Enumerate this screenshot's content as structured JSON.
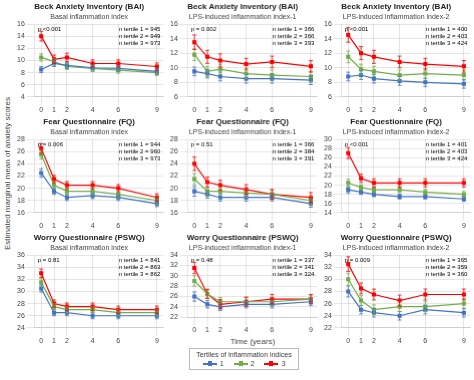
{
  "chart_data": [
    {
      "type": "line",
      "title": "Beck Anxiety Inventory (BAI)",
      "subtitle": "Basal inflammation index",
      "x": [
        0,
        1,
        2,
        4,
        6,
        9
      ],
      "xlim": [
        -0.5,
        9.5
      ],
      "xticks": [
        0,
        1,
        2,
        4,
        6,
        9
      ],
      "ylim": [
        4,
        16
      ],
      "yticks": [
        4,
        6,
        8,
        10,
        12,
        14,
        16
      ],
      "grid": true,
      "annotations": [
        "p <0.001",
        "n tertile 1 = 945",
        "n tertile 2 = 949",
        "n tertile 3 = 973"
      ],
      "series": [
        {
          "name": "1",
          "color": "#4472C4",
          "marker": "square",
          "values": [
            8.5,
            9.5,
            9.2,
            8.8,
            8.7,
            8.2
          ],
          "errors": [
            0.5,
            0.5,
            0.5,
            0.5,
            0.5,
            0.5
          ]
        },
        {
          "name": "2",
          "color": "#70AD47",
          "marker": "square",
          "values": [
            10.5,
            9.8,
            9.0,
            8.7,
            8.4,
            8.0
          ],
          "errors": [
            0.6,
            0.5,
            0.5,
            0.5,
            0.5,
            0.5
          ]
        },
        {
          "name": "3",
          "color": "#FF0000",
          "marker": "square",
          "values": [
            14.0,
            10.2,
            10.5,
            9.5,
            9.5,
            9.0
          ],
          "errors": [
            0.8,
            0.7,
            0.7,
            0.6,
            0.6,
            0.6
          ]
        }
      ]
    },
    {
      "type": "line",
      "title": "Beck Anxiety Inventory (BAI)",
      "subtitle": "LPS-induced inflammation index-1",
      "x": [
        0,
        1,
        2,
        4,
        6,
        9
      ],
      "xlim": [
        -0.5,
        9.5
      ],
      "xticks": [
        0,
        1,
        2,
        4,
        6,
        9
      ],
      "ylim": [
        6,
        16
      ],
      "yticks": [
        6,
        8,
        10,
        12,
        14,
        16
      ],
      "grid": true,
      "annotations": [
        "p = 0.002",
        "n tertile 1 = 366",
        "n tertile 2 = 366",
        "n tertile 3 = 393"
      ],
      "series": [
        {
          "name": "1",
          "color": "#4472C4",
          "marker": "square",
          "values": [
            9.5,
            9.2,
            8.8,
            8.5,
            8.5,
            8.3
          ],
          "errors": [
            0.6,
            0.6,
            0.6,
            0.6,
            0.6,
            0.6
          ]
        },
        {
          "name": "2",
          "color": "#70AD47",
          "marker": "square",
          "values": [
            11.8,
            9.5,
            9.8,
            9.2,
            9.0,
            8.8
          ],
          "errors": [
            0.8,
            0.7,
            0.7,
            0.7,
            0.7,
            0.7
          ]
        },
        {
          "name": "3",
          "color": "#FF0000",
          "marker": "square",
          "values": [
            13.5,
            11.5,
            11.0,
            10.5,
            10.8,
            10.2
          ],
          "errors": [
            1.0,
            0.9,
            0.9,
            0.8,
            0.8,
            0.8
          ]
        }
      ]
    },
    {
      "type": "line",
      "title": "Beck Anxiety Inventory (BAI)",
      "subtitle": "LPS-induced inflammation index-2",
      "x": [
        0,
        1,
        2,
        4,
        6,
        9
      ],
      "xlim": [
        -0.5,
        9.5
      ],
      "xticks": [
        0,
        1,
        2,
        4,
        6,
        9
      ],
      "ylim": [
        6,
        16
      ],
      "yticks": [
        6,
        8,
        10,
        12,
        14,
        16
      ],
      "grid": true,
      "annotations": [
        "p <0.001",
        "n tertile 1 = 400",
        "n tertile 2 = 403",
        "n tertile 3 = 424"
      ],
      "series": [
        {
          "name": "1",
          "color": "#4472C4",
          "marker": "square",
          "values": [
            8.8,
            9.0,
            8.5,
            8.2,
            8.0,
            7.8
          ],
          "errors": [
            0.6,
            0.6,
            0.6,
            0.6,
            0.6,
            0.6
          ]
        },
        {
          "name": "2",
          "color": "#70AD47",
          "marker": "square",
          "values": [
            11.5,
            9.8,
            9.5,
            9.0,
            9.2,
            9.0
          ],
          "errors": [
            0.8,
            0.7,
            0.7,
            0.7,
            0.7,
            0.7
          ]
        },
        {
          "name": "3",
          "color": "#FF0000",
          "marker": "square",
          "values": [
            14.5,
            12.0,
            11.5,
            10.8,
            10.5,
            10.2
          ],
          "errors": [
            1.0,
            0.9,
            0.9,
            0.8,
            0.8,
            0.8
          ]
        }
      ]
    },
    {
      "type": "line",
      "title": "Fear Questionnaire (FQ)",
      "subtitle": "Basal inflammation index",
      "ylabel": "Estimated marginal mean of anxiety scores",
      "x": [
        0,
        1,
        2,
        4,
        6,
        9
      ],
      "xlim": [
        -0.5,
        9.5
      ],
      "xticks": [
        0,
        1,
        2,
        4,
        6,
        9
      ],
      "ylim": [
        16,
        28
      ],
      "yticks": [
        16,
        18,
        20,
        22,
        24,
        26,
        28
      ],
      "grid": true,
      "annotations": [
        "p = 0.006",
        "n tertile 1 = 944",
        "n tertile 2 = 960",
        "n tertile 3 = 973"
      ],
      "series": [
        {
          "name": "1",
          "color": "#4472C4",
          "marker": "square",
          "values": [
            22.5,
            19.5,
            18.5,
            18.8,
            18.5,
            17.5
          ],
          "errors": [
            0.7,
            0.5,
            0.5,
            0.5,
            0.5,
            0.5
          ]
        },
        {
          "name": "2",
          "color": "#70AD47",
          "marker": "square",
          "values": [
            25.5,
            20.5,
            19.5,
            19.5,
            19.0,
            18.0
          ],
          "errors": [
            0.7,
            0.6,
            0.6,
            0.6,
            0.6,
            0.6
          ]
        },
        {
          "name": "3",
          "color": "#FF0000",
          "marker": "square",
          "values": [
            26.5,
            21.5,
            20.5,
            20.5,
            20.0,
            18.5
          ],
          "errors": [
            0.8,
            0.6,
            0.6,
            0.6,
            0.6,
            0.6
          ]
        }
      ]
    },
    {
      "type": "line",
      "title": "Fear Questionnaire (FQ)",
      "subtitle": "LPS-induced inflammation index-1",
      "x": [
        0,
        1,
        2,
        4,
        6,
        9
      ],
      "xlim": [
        -0.5,
        9.5
      ],
      "xticks": [
        0,
        1,
        2,
        4,
        6,
        9
      ],
      "ylim": [
        16,
        28
      ],
      "yticks": [
        16,
        18,
        20,
        22,
        24,
        26,
        28
      ],
      "grid": true,
      "annotations": [
        "p = 0.51",
        "n tertile 1 = 366",
        "n tertile 2 = 384",
        "n tertile 3 = 391"
      ],
      "series": [
        {
          "name": "1",
          "color": "#4472C4",
          "marker": "square",
          "values": [
            19.5,
            19.0,
            18.5,
            18.5,
            18.5,
            17.5
          ],
          "errors": [
            0.8,
            0.6,
            0.6,
            0.6,
            0.6,
            0.6
          ]
        },
        {
          "name": "2",
          "color": "#70AD47",
          "marker": "square",
          "values": [
            21.5,
            19.5,
            19.5,
            19.2,
            19.0,
            18.0
          ],
          "errors": [
            0.9,
            0.7,
            0.7,
            0.7,
            0.7,
            0.7
          ]
        },
        {
          "name": "3",
          "color": "#FF0000",
          "marker": "square",
          "values": [
            24.0,
            21.0,
            20.5,
            19.8,
            19.0,
            18.5
          ],
          "errors": [
            1.1,
            0.8,
            0.8,
            0.8,
            0.8,
            0.8
          ]
        }
      ]
    },
    {
      "type": "line",
      "title": "Fear Questionnaire (FQ)",
      "subtitle": "LPS-induced inflammation index-2",
      "x": [
        0,
        1,
        2,
        4,
        6,
        9
      ],
      "xlim": [
        -0.5,
        9.5
      ],
      "xticks": [
        0,
        1,
        2,
        4,
        6,
        9
      ],
      "ylim": [
        14,
        30
      ],
      "yticks": [
        14,
        16,
        18,
        20,
        22,
        24,
        26,
        28,
        30
      ],
      "grid": true,
      "annotations": [
        "p <0.001",
        "n tertile 1 = 401",
        "n tertile 2 = 403",
        "n tertile 3 = 424"
      ],
      "series": [
        {
          "name": "1",
          "color": "#4472C4",
          "marker": "square",
          "values": [
            19.0,
            18.5,
            18.0,
            17.5,
            17.5,
            17.0
          ],
          "errors": [
            0.7,
            0.5,
            0.5,
            0.5,
            0.5,
            0.5
          ]
        },
        {
          "name": "2",
          "color": "#70AD47",
          "marker": "square",
          "values": [
            20.5,
            19.5,
            19.0,
            19.0,
            18.5,
            18.0
          ],
          "errors": [
            0.8,
            0.6,
            0.6,
            0.6,
            0.6,
            0.6
          ]
        },
        {
          "name": "3",
          "color": "#FF0000",
          "marker": "square",
          "values": [
            27.0,
            21.5,
            20.5,
            20.5,
            20.5,
            20.5
          ],
          "errors": [
            1.2,
            0.9,
            0.9,
            0.9,
            0.9,
            0.9
          ]
        }
      ]
    },
    {
      "type": "line",
      "title": "Worry Questionnaire (PSWQ)",
      "subtitle": "Basal inflammation index",
      "x": [
        0,
        1,
        2,
        4,
        6,
        9
      ],
      "xlim": [
        -0.5,
        9.5
      ],
      "xticks": [
        0,
        1,
        2,
        4,
        6,
        9
      ],
      "ylim": [
        24,
        36
      ],
      "yticks": [
        24,
        26,
        28,
        30,
        32,
        34,
        36
      ],
      "grid": true,
      "annotations": [
        "p = 0.81",
        "n tertile 1 = 841",
        "n tertile 2 = 863",
        "n tertile 3 = 862"
      ],
      "series": [
        {
          "name": "1",
          "color": "#4472C4",
          "marker": "square",
          "values": [
            30.5,
            26.5,
            26.5,
            26.0,
            26.0,
            26.0
          ],
          "errors": [
            0.6,
            0.5,
            0.5,
            0.5,
            0.5,
            0.5
          ]
        },
        {
          "name": "2",
          "color": "#70AD47",
          "marker": "square",
          "values": [
            31.5,
            27.5,
            27.0,
            27.0,
            26.5,
            26.5
          ],
          "errors": [
            0.6,
            0.5,
            0.5,
            0.5,
            0.5,
            0.5
          ]
        },
        {
          "name": "3",
          "color": "#FF0000",
          "marker": "square",
          "values": [
            33.0,
            28.0,
            27.5,
            27.5,
            27.0,
            27.0
          ],
          "errors": [
            0.7,
            0.6,
            0.6,
            0.6,
            0.6,
            0.6
          ]
        }
      ]
    },
    {
      "type": "line",
      "title": "Worry Questionnaire (PSWQ)",
      "subtitle": "LPS-induced inflammation index-1",
      "xlabel": "Time (years)",
      "legend": "bottom",
      "legend_title": "Tertiles of inflammation indices",
      "x": [
        0,
        1,
        2,
        4,
        6,
        9
      ],
      "xlim": [
        -0.5,
        9.5
      ],
      "xticks": [
        0,
        1,
        2,
        4,
        6,
        9
      ],
      "ylim": [
        22,
        34
      ],
      "yticks": [
        22,
        24,
        26,
        28,
        30,
        32,
        34
      ],
      "grid": true,
      "annotations": [
        "p = 0.48",
        "n tertile 1 = 337",
        "n tertile 2 = 341",
        "n tertile 3 = 324"
      ],
      "series": [
        {
          "name": "1",
          "color": "#4472C4",
          "marker": "square",
          "values": [
            26.0,
            24.5,
            24.0,
            24.5,
            24.5,
            25.0
          ],
          "errors": [
            0.9,
            0.7,
            0.7,
            0.7,
            0.7,
            0.7
          ]
        },
        {
          "name": "2",
          "color": "#70AD47",
          "marker": "square",
          "values": [
            29.0,
            26.5,
            25.0,
            25.0,
            25.0,
            25.5
          ],
          "errors": [
            1.0,
            0.8,
            0.8,
            0.8,
            0.8,
            0.8
          ]
        },
        {
          "name": "3",
          "color": "#FF0000",
          "marker": "square",
          "values": [
            31.5,
            26.5,
            24.5,
            25.0,
            25.5,
            25.5
          ],
          "errors": [
            1.1,
            0.9,
            0.9,
            0.9,
            0.9,
            0.9
          ]
        }
      ]
    },
    {
      "type": "line",
      "title": "Worry Questionnaire (PSWQ)",
      "subtitle": "LPS-induced inflammation index-2",
      "x": [
        0,
        1,
        2,
        4,
        6,
        9
      ],
      "xlim": [
        -0.5,
        9.5
      ],
      "xticks": [
        0,
        1,
        2,
        4,
        6,
        9
      ],
      "ylim": [
        22,
        34
      ],
      "yticks": [
        22,
        24,
        26,
        28,
        30,
        32,
        34
      ],
      "grid": true,
      "annotations": [
        "p = 0.009",
        "n tertile 1 = 365",
        "n tertile 2 = 359",
        "n tertile 3 = 360"
      ],
      "series": [
        {
          "name": "1",
          "color": "#4472C4",
          "marker": "square",
          "values": [
            28.0,
            25.0,
            24.5,
            24.0,
            25.0,
            24.5
          ],
          "errors": [
            0.9,
            0.7,
            0.7,
            0.7,
            0.7,
            0.7
          ]
        },
        {
          "name": "2",
          "color": "#70AD47",
          "marker": "square",
          "values": [
            30.0,
            26.5,
            25.0,
            25.5,
            25.5,
            26.0
          ],
          "errors": [
            1.0,
            0.8,
            0.8,
            0.8,
            0.8,
            0.8
          ]
        },
        {
          "name": "3",
          "color": "#FF0000",
          "marker": "square",
          "values": [
            32.5,
            28.5,
            27.5,
            26.5,
            27.5,
            27.5
          ],
          "errors": [
            1.2,
            0.9,
            0.9,
            0.9,
            0.9,
            0.9
          ]
        }
      ]
    }
  ]
}
